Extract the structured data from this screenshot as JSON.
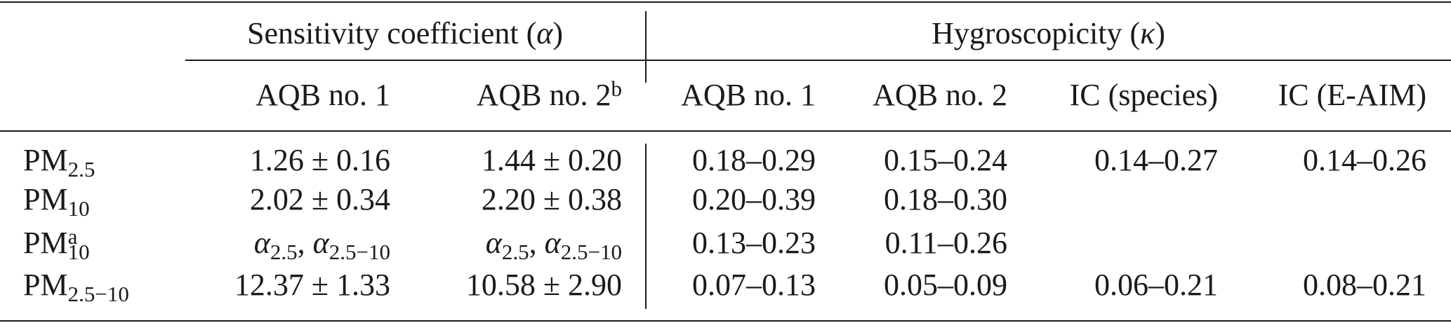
{
  "header": {
    "groups": [
      [
        {
          "text": "Sensitivity coefficient ("
        },
        {
          "text": "α",
          "italic": true
        },
        {
          "text": ")"
        }
      ],
      [
        {
          "text": "Hygroscopicity ("
        },
        {
          "text": "κ",
          "italic": true
        },
        {
          "text": ")"
        }
      ]
    ],
    "columns": [
      [
        {
          "text": "AQB no. 1"
        }
      ],
      [
        {
          "text": "AQB no. 2",
          "sup": "b"
        }
      ],
      [
        {
          "text": "AQB no. 1"
        }
      ],
      [
        {
          "text": "AQB no. 2"
        }
      ],
      [
        {
          "text": "IC (species)"
        }
      ],
      [
        {
          "text": "IC (E-AIM)"
        }
      ]
    ]
  },
  "table": {
    "rows": [
      {
        "label": [
          {
            "text": "PM",
            "sub": "2.5"
          }
        ],
        "cells": [
          [
            {
              "text": "1.26 ± 0.16"
            }
          ],
          [
            {
              "text": "1.44 ± 0.20"
            }
          ],
          [
            {
              "text": "0.18–0.29"
            }
          ],
          [
            {
              "text": "0.15–0.24"
            }
          ],
          [
            {
              "text": "0.14–0.27"
            }
          ],
          [
            {
              "text": "0.14–0.26"
            }
          ]
        ]
      },
      {
        "label": [
          {
            "text": "PM",
            "sub": "10"
          }
        ],
        "cells": [
          [
            {
              "text": "2.02 ± 0.34"
            }
          ],
          [
            {
              "text": "2.20 ± 0.38"
            }
          ],
          [
            {
              "text": "0.20–0.39"
            }
          ],
          [
            {
              "text": "0.18–0.30"
            }
          ],
          null,
          null
        ]
      },
      {
        "label": [
          {
            "text": "PM",
            "sub": "10",
            "sup": "a"
          }
        ],
        "cells": [
          [
            {
              "text": "α",
              "italic": true,
              "sub": "2.5"
            },
            {
              "text": ", "
            },
            {
              "text": "α",
              "italic": true,
              "sub": "2.5−10"
            }
          ],
          [
            {
              "text": "α",
              "italic": true,
              "sub": "2.5"
            },
            {
              "text": ", "
            },
            {
              "text": "α",
              "italic": true,
              "sub": "2.5−10"
            }
          ],
          [
            {
              "text": "0.13–0.23"
            }
          ],
          [
            {
              "text": "0.11–0.26"
            }
          ],
          null,
          null
        ]
      },
      {
        "label": [
          {
            "text": "PM",
            "sub": "2.5−10"
          }
        ],
        "cells": [
          [
            {
              "text": "12.37 ± 1.33"
            }
          ],
          [
            {
              "text": "10.58 ± 2.90"
            }
          ],
          [
            {
              "text": "0.07–0.13"
            }
          ],
          [
            {
              "text": "0.05–0.09"
            }
          ],
          [
            {
              "text": "0.06–0.21"
            }
          ],
          [
            {
              "text": "0.08–0.21"
            }
          ]
        ]
      }
    ]
  }
}
